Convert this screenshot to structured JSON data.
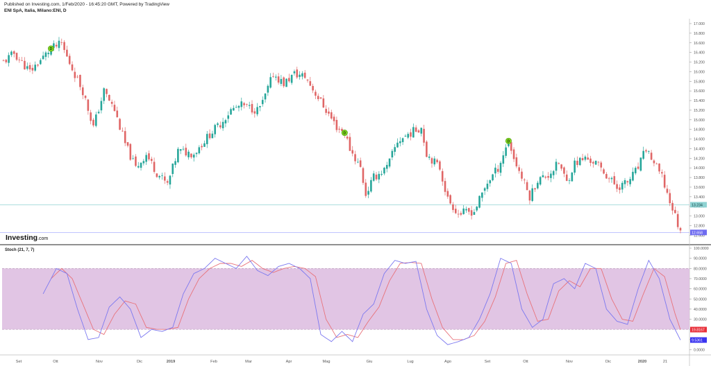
{
  "header": {
    "published": "Published on Investing.com, 1/Feb/2020 - 16:45:20 GMT, Powered by TradingView",
    "symbol": "ENI SpA, Italia, Milano:ENI, D"
  },
  "branding": {
    "logo_main": "Investing",
    "logo_suffix": ".com"
  },
  "colors": {
    "up": "#26a69a",
    "down": "#e06666",
    "hline": "#8fd3d3",
    "stoch_k": "#7b78f0",
    "stoch_d": "#e8727a",
    "band": "#dcbbdf",
    "band_line": "#b89ab8",
    "marker": "#7ed321",
    "axis": "#555555"
  },
  "price_axis": {
    "ticks": [
      "17.000",
      "16.800",
      "16.600",
      "16.400",
      "16.200",
      "16.000",
      "15.800",
      "15.600",
      "15.400",
      "15.200",
      "15.000",
      "14.800",
      "14.600",
      "14.400",
      "14.200",
      "14.000",
      "13.800",
      "13.600",
      "13.400",
      "13.200",
      "13.000",
      "12.800",
      "12.600",
      "12.400"
    ],
    "tag_upper": "13.234",
    "tag_last": "12.658"
  },
  "stoch_axis": {
    "title": "Stoch (21, 7, 7)",
    "ticks": [
      "100.0000",
      "90.0000",
      "80.0000",
      "70.0000",
      "60.0000",
      "50.0000",
      "40.0000",
      "30.0000",
      "20.0000",
      "10.0000",
      "0.0000"
    ],
    "tag_d": "19.8167",
    "tag_k": "9.5361"
  },
  "time_axis": {
    "labels": [
      "Set",
      "Ott",
      "Nov",
      "Dic",
      "2019",
      "Feb",
      "Mar",
      "Apr",
      "Mag",
      "Giu",
      "Lug",
      "Ago",
      "Set",
      "Ott",
      "Nov",
      "Dic",
      "2020",
      "21"
    ],
    "bold": [
      "2019",
      "2020"
    ]
  },
  "markers": [
    {
      "label": "D",
      "date_index": 18,
      "price": 16.48
    },
    {
      "label": "D",
      "date_index": 129,
      "price": 14.73
    },
    {
      "label": "D",
      "date_index": 191,
      "price": 14.56
    }
  ],
  "chart_data": [
    {
      "type": "candlestick",
      "title": "ENI SpA, Italia, Milano:ENI, D",
      "x_range": [
        "Set 2018",
        "Gen 2020"
      ],
      "y_range": [
        12.4,
        17.0
      ],
      "horizontal_lines": [
        13.234,
        12.658
      ],
      "close_anchors": [
        [
          0,
          16.2
        ],
        [
          4,
          16.38
        ],
        [
          10,
          16.0
        ],
        [
          14,
          16.24
        ],
        [
          18,
          16.48
        ],
        [
          22,
          16.58
        ],
        [
          24,
          16.3
        ],
        [
          30,
          15.6
        ],
        [
          34,
          14.85
        ],
        [
          38,
          15.6
        ],
        [
          42,
          15.2
        ],
        [
          46,
          14.5
        ],
        [
          50,
          14.0
        ],
        [
          54,
          14.28
        ],
        [
          58,
          13.9
        ],
        [
          62,
          13.65
        ],
        [
          66,
          14.35
        ],
        [
          72,
          14.3
        ],
        [
          78,
          14.7
        ],
        [
          82,
          14.92
        ],
        [
          86,
          15.2
        ],
        [
          90,
          15.3
        ],
        [
          96,
          15.2
        ],
        [
          98,
          15.35
        ],
        [
          102,
          15.95
        ],
        [
          106,
          15.75
        ],
        [
          110,
          15.95
        ],
        [
          114,
          15.9
        ],
        [
          118,
          15.55
        ],
        [
          122,
          15.2
        ],
        [
          126,
          14.85
        ],
        [
          129,
          14.73
        ],
        [
          131,
          14.4
        ],
        [
          135,
          14.0
        ],
        [
          137,
          13.45
        ],
        [
          140,
          13.8
        ],
        [
          145,
          14.0
        ],
        [
          149,
          14.55
        ],
        [
          153,
          14.7
        ],
        [
          158,
          14.85
        ],
        [
          160,
          14.3
        ],
        [
          165,
          14.0
        ],
        [
          168,
          13.35
        ],
        [
          172,
          13.05
        ],
        [
          178,
          13.1
        ],
        [
          183,
          13.7
        ],
        [
          187,
          14.0
        ],
        [
          191,
          14.56
        ],
        [
          193,
          14.2
        ],
        [
          196,
          13.8
        ],
        [
          199,
          13.4
        ],
        [
          202,
          13.75
        ],
        [
          206,
          13.85
        ],
        [
          210,
          14.1
        ],
        [
          213,
          13.7
        ],
        [
          216,
          14.1
        ],
        [
          220,
          14.2
        ],
        [
          224,
          14.1
        ],
        [
          228,
          13.85
        ],
        [
          232,
          13.6
        ],
        [
          236,
          13.7
        ],
        [
          240,
          14.0
        ],
        [
          243,
          14.4
        ],
        [
          246,
          14.1
        ],
        [
          249,
          13.8
        ],
        [
          252,
          13.3
        ],
        [
          254,
          13.0
        ],
        [
          256,
          12.658
        ]
      ]
    },
    {
      "type": "line",
      "title": "Stoch (21, 7, 7)",
      "y_range": [
        0,
        100
      ],
      "bands": [
        20,
        80
      ],
      "series": [
        {
          "name": "%K",
          "anchors": [
            [
              15,
              55
            ],
            [
              20,
              80
            ],
            [
              24,
              75
            ],
            [
              28,
              40
            ],
            [
              32,
              10
            ],
            [
              36,
              12
            ],
            [
              40,
              42
            ],
            [
              44,
              52
            ],
            [
              48,
              40
            ],
            [
              52,
              12
            ],
            [
              56,
              20
            ],
            [
              60,
              18
            ],
            [
              64,
              22
            ],
            [
              68,
              55
            ],
            [
              72,
              75
            ],
            [
              76,
              80
            ],
            [
              80,
              90
            ],
            [
              84,
              85
            ],
            [
              88,
              80
            ],
            [
              92,
              92
            ],
            [
              96,
              78
            ],
            [
              100,
              73
            ],
            [
              104,
              82
            ],
            [
              108,
              85
            ],
            [
              112,
              80
            ],
            [
              116,
              70
            ],
            [
              120,
              15
            ],
            [
              124,
              8
            ],
            [
              128,
              18
            ],
            [
              132,
              8
            ],
            [
              136,
              35
            ],
            [
              140,
              45
            ],
            [
              144,
              75
            ],
            [
              148,
              88
            ],
            [
              152,
              85
            ],
            [
              156,
              87
            ],
            [
              160,
              40
            ],
            [
              164,
              14
            ],
            [
              168,
              5
            ],
            [
              172,
              8
            ],
            [
              176,
              12
            ],
            [
              180,
              30
            ],
            [
              184,
              55
            ],
            [
              188,
              90
            ],
            [
              192,
              85
            ],
            [
              196,
              40
            ],
            [
              200,
              22
            ],
            [
              204,
              30
            ],
            [
              208,
              65
            ],
            [
              212,
              70
            ],
            [
              216,
              60
            ],
            [
              220,
              85
            ],
            [
              224,
              80
            ],
            [
              228,
              40
            ],
            [
              232,
              28
            ],
            [
              236,
              25
            ],
            [
              240,
              60
            ],
            [
              244,
              88
            ],
            [
              248,
              70
            ],
            [
              252,
              30
            ],
            [
              256,
              9.5361
            ]
          ]
        },
        {
          "name": "%D",
          "anchors": [
            [
              18,
              70
            ],
            [
              22,
              80
            ],
            [
              26,
              70
            ],
            [
              30,
              45
            ],
            [
              34,
              20
            ],
            [
              38,
              15
            ],
            [
              42,
              35
            ],
            [
              46,
              48
            ],
            [
              50,
              45
            ],
            [
              54,
              22
            ],
            [
              58,
              20
            ],
            [
              62,
              20
            ],
            [
              66,
              22
            ],
            [
              70,
              50
            ],
            [
              74,
              70
            ],
            [
              78,
              80
            ],
            [
              82,
              85
            ],
            [
              86,
              85
            ],
            [
              90,
              82
            ],
            [
              94,
              88
            ],
            [
              98,
              80
            ],
            [
              102,
              76
            ],
            [
              106,
              80
            ],
            [
              110,
              82
            ],
            [
              114,
              80
            ],
            [
              118,
              72
            ],
            [
              122,
              30
            ],
            [
              126,
              12
            ],
            [
              130,
              15
            ],
            [
              134,
              12
            ],
            [
              138,
              28
            ],
            [
              142,
              42
            ],
            [
              146,
              68
            ],
            [
              150,
              85
            ],
            [
              154,
              86
            ],
            [
              158,
              85
            ],
            [
              162,
              50
            ],
            [
              166,
              22
            ],
            [
              170,
              10
            ],
            [
              174,
              10
            ],
            [
              178,
              14
            ],
            [
              182,
              28
            ],
            [
              186,
              52
            ],
            [
              190,
              85
            ],
            [
              194,
              88
            ],
            [
              198,
              55
            ],
            [
              202,
              28
            ],
            [
              206,
              30
            ],
            [
              210,
              58
            ],
            [
              214,
              68
            ],
            [
              218,
              62
            ],
            [
              222,
              80
            ],
            [
              226,
              80
            ],
            [
              230,
              50
            ],
            [
              234,
              30
            ],
            [
              238,
              28
            ],
            [
              242,
              55
            ],
            [
              246,
              80
            ],
            [
              250,
              72
            ],
            [
              254,
              35
            ],
            [
              256,
              19.8167
            ]
          ]
        }
      ]
    }
  ]
}
